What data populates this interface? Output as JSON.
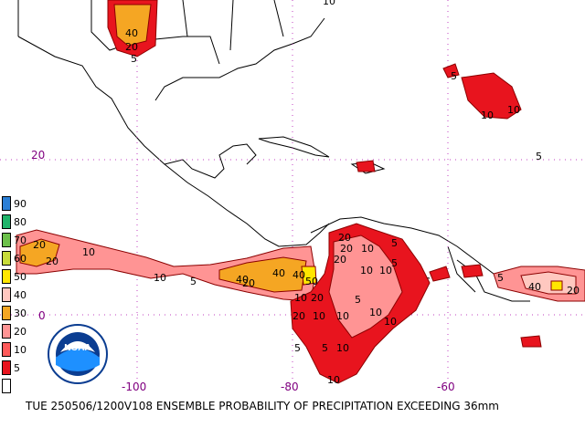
{
  "caption": "TUE 250506/1200V108  ENSEMBLE PROBABILITY OF PRECIPITATION EXCEEDING 36mm",
  "logo_text": "NOAA",
  "axis": {
    "lon_labels": [
      "-100",
      "-80",
      "-60"
    ],
    "lat_labels": [
      "20",
      "0"
    ],
    "label_color": "#800080"
  },
  "legend": [
    {
      "value": "90",
      "color": "#2b7fd6"
    },
    {
      "value": "80",
      "color": "#1fb46a"
    },
    {
      "value": "70",
      "color": "#6cc04a"
    },
    {
      "value": "60",
      "color": "#c8dc3a"
    },
    {
      "value": "50",
      "color": "#ffe600"
    },
    {
      "value": "40",
      "color": "#ffc8c0"
    },
    {
      "value": "30",
      "color": "#f5a623"
    },
    {
      "value": "20",
      "color": "#ff9494"
    },
    {
      "value": "10",
      "color": "#ff5a5a"
    },
    {
      "value": "5",
      "color": "#e8141e"
    },
    {
      "value": "",
      "color": "#ffffff"
    }
  ],
  "contour_labels": [
    "40",
    "20",
    "5",
    "10",
    "5",
    "20",
    "20",
    "10",
    "10",
    "5",
    "40",
    "20",
    "40",
    "40",
    "50",
    "10",
    "20",
    "20",
    "20",
    "20",
    "10",
    "5",
    "10",
    "10",
    "5",
    "20",
    "10",
    "10",
    "5",
    "10",
    "10",
    "5",
    "5",
    "10",
    "10",
    "40",
    "20",
    "5",
    "10",
    "10",
    "5"
  ]
}
